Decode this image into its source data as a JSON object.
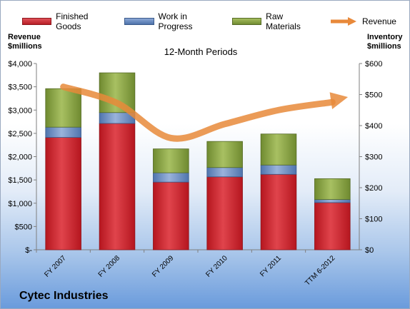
{
  "legend": {
    "items": [
      {
        "label": "Finished Goods",
        "color": "#c8242d"
      },
      {
        "label": "Work in Progress",
        "color": "#5b7fb5"
      },
      {
        "label": "Raw Materials",
        "color": "#7f9a3c"
      },
      {
        "label": "Revenue",
        "color": "#e8893a"
      }
    ]
  },
  "labels": {
    "left_axis": "Revenue\n$millions",
    "right_axis": "Inventory\n$millions",
    "period": "12-Month Periods",
    "company": "Cytec Industries"
  },
  "chart_data": {
    "type": "bar",
    "stacked": true,
    "categories": [
      "FY 2007",
      "FY 2008",
      "FY 2009",
      "FY 2010",
      "FY 2011",
      "TTM 6-2012"
    ],
    "series": [
      {
        "name": "Finished Goods",
        "axis": "right",
        "values": [
          362,
          407,
          218,
          235,
          243,
          152
        ]
      },
      {
        "name": "Work in Progress",
        "axis": "right",
        "values": [
          33,
          35,
          30,
          30,
          30,
          10
        ]
      },
      {
        "name": "Raw Materials",
        "axis": "right",
        "values": [
          124,
          128,
          77,
          84,
          100,
          67
        ]
      },
      {
        "name": "Revenue",
        "axis": "left",
        "type": "line",
        "values": [
          3500,
          3150,
          2400,
          2700,
          3000,
          3170
        ]
      }
    ],
    "left_axis": {
      "ylim": [
        0,
        4000
      ],
      "ticks": [
        "$-",
        "$500",
        "$1,000",
        "$1,500",
        "$2,000",
        "$2,500",
        "$3,000",
        "$3,500",
        "$4,000"
      ]
    },
    "right_axis": {
      "ylim": [
        0,
        600
      ],
      "ticks": [
        "$0",
        "$100",
        "$200",
        "$300",
        "$400",
        "$500",
        "$600"
      ]
    },
    "grid": false,
    "legend_position": "top"
  }
}
